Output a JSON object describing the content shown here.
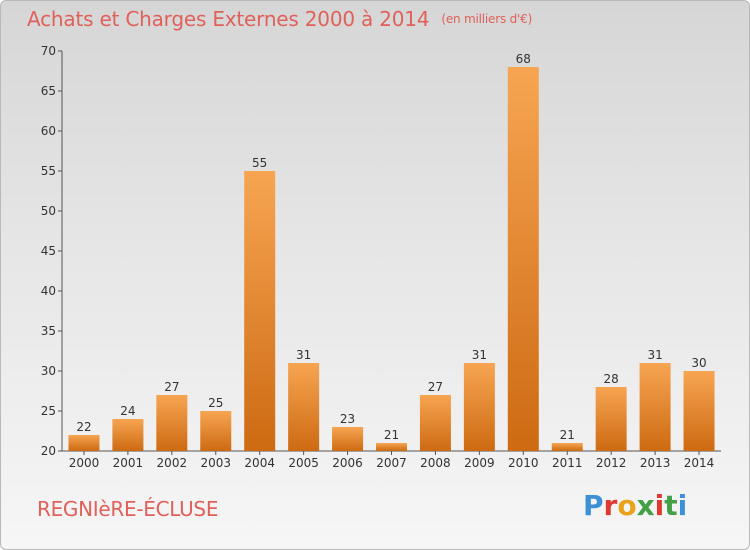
{
  "title": "Achats et Charges Externes 2000 à 2014",
  "subtitle": "(en milliers d'€)",
  "commune": "REGNIèRE-ÉCLUSE",
  "logo": {
    "text": "Proxiti",
    "colors": [
      "#3d8fd6",
      "#e0392f",
      "#e8a31a",
      "#43a047",
      "#e0392f",
      "#43a047",
      "#3d8fd6"
    ]
  },
  "colors": {
    "bar_top": "#f7a552",
    "bar_bottom": "#cd6a12",
    "title": "#e0605a"
  },
  "chart_data": {
    "type": "bar",
    "categories": [
      "2000",
      "2001",
      "2002",
      "2003",
      "2004",
      "2005",
      "2006",
      "2007",
      "2008",
      "2009",
      "2010",
      "2011",
      "2012",
      "2013",
      "2014"
    ],
    "values": [
      22,
      24,
      27,
      25,
      55,
      31,
      23,
      21,
      27,
      31,
      68,
      21,
      28,
      31,
      30
    ],
    "title": "Achats et Charges Externes 2000 à 2014",
    "ylim": [
      20,
      70
    ],
    "yticks": [
      20,
      25,
      30,
      35,
      40,
      45,
      50,
      55,
      60,
      65,
      70
    ],
    "grid": false,
    "data_labels": true
  }
}
